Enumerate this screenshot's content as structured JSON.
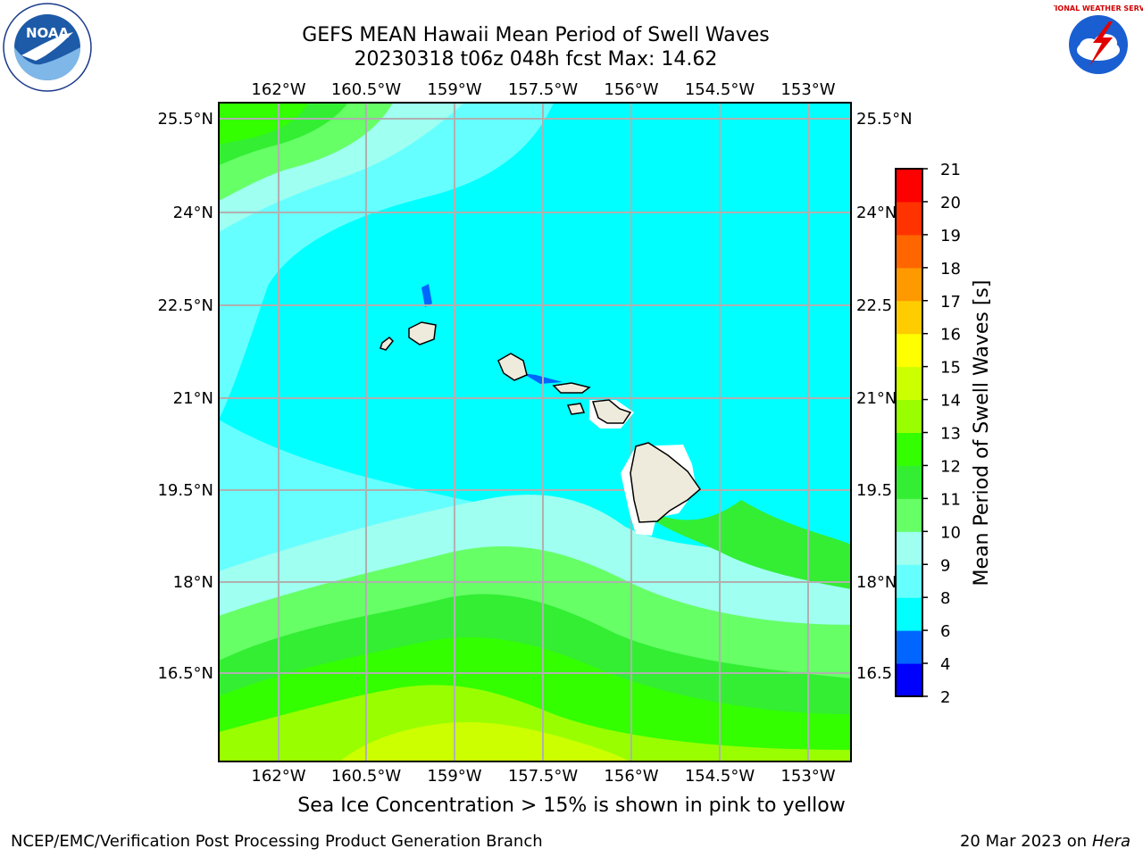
{
  "title": {
    "line1": "GEFS MEAN Hawaii Mean Period of Swell Waves",
    "line2": "20230318 t06z 048h fcst   Max: 14.62"
  },
  "map": {
    "lon_ticks": [
      "162°W",
      "160.5°W",
      "159°W",
      "157.5°W",
      "156°W",
      "154.5°W",
      "153°W"
    ],
    "lat_ticks": [
      "25.5°N",
      "24°N",
      "22.5°N",
      "21°N",
      "19.5°N",
      "18°N",
      "16.5°N"
    ],
    "lat_ticks_right": [
      "25.5°N",
      "24°N",
      "22.5",
      "21°N",
      "19.5",
      "18°N",
      "16.5"
    ],
    "land_color": "#eeebdc",
    "grid_color": "#b0b0b0"
  },
  "colorbar": {
    "label": "Mean Period of Swell Waves [s]",
    "ticks": [
      "2",
      "4",
      "6",
      "8",
      "9",
      "10",
      "11",
      "12",
      "13",
      "14",
      "15",
      "16",
      "17",
      "18",
      "19",
      "20",
      "21"
    ],
    "levels": [
      {
        "from": 2,
        "to": 4,
        "color": "#0000ff"
      },
      {
        "from": 4,
        "to": 6,
        "color": "#0066ff"
      },
      {
        "from": 6,
        "to": 8,
        "color": "#00ffff"
      },
      {
        "from": 8,
        "to": 9,
        "color": "#66ffff"
      },
      {
        "from": 9,
        "to": 10,
        "color": "#9ffff0"
      },
      {
        "from": 10,
        "to": 11,
        "color": "#66ff66"
      },
      {
        "from": 11,
        "to": 12,
        "color": "#33ee33"
      },
      {
        "from": 12,
        "to": 13,
        "color": "#33ff00"
      },
      {
        "from": 13,
        "to": 14,
        "color": "#99ff00"
      },
      {
        "from": 14,
        "to": 15,
        "color": "#ccff00"
      },
      {
        "from": 15,
        "to": 16,
        "color": "#ffff00"
      },
      {
        "from": 16,
        "to": 17,
        "color": "#ffcc00"
      },
      {
        "from": 17,
        "to": 18,
        "color": "#ff9900"
      },
      {
        "from": 18,
        "to": 19,
        "color": "#ff6600"
      },
      {
        "from": 19,
        "to": 20,
        "color": "#ff3300"
      },
      {
        "from": 20,
        "to": 21,
        "color": "#ff0000"
      }
    ]
  },
  "note": "Sea Ice Concentration > 15% is shown in pink to yellow",
  "footer": {
    "left": "NCEP/EMC/Verification Post Processing Product Generation Branch",
    "date": "20 Mar 2023 on",
    "host": "Hera"
  },
  "logos": {
    "noaa_text": "NOAA",
    "nws_text": "NATIONAL WEATHER SERVICE"
  }
}
